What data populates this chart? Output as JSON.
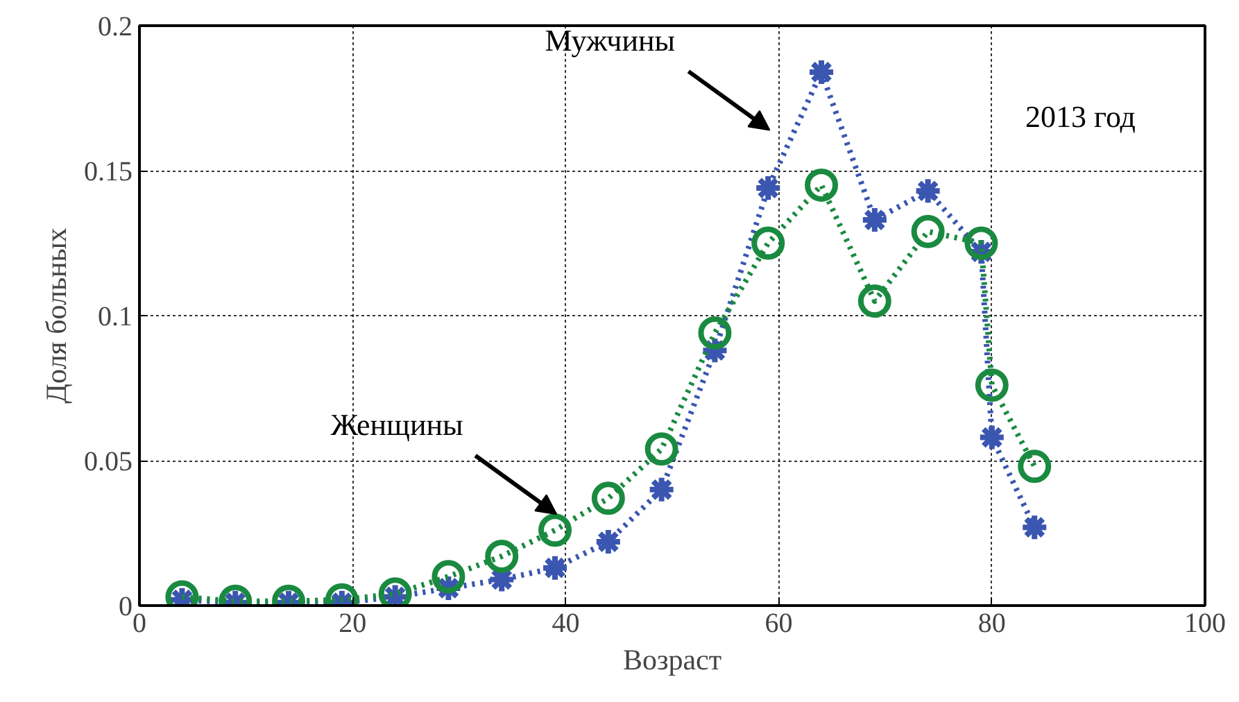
{
  "chart_data": {
    "type": "line",
    "xlabel": "Возраст",
    "ylabel": "Доля больных",
    "x": [
      4,
      9,
      14,
      19,
      24,
      29,
      34,
      39,
      44,
      49,
      54,
      59,
      64,
      69,
      74,
      79,
      80,
      84
    ],
    "series": [
      {
        "name": "Мужчины",
        "color": "#3a56b0",
        "marker": "cross",
        "line_style": "dotted",
        "values": [
          0.002,
          0.001,
          0.001,
          0.001,
          0.003,
          0.006,
          0.009,
          0.013,
          0.022,
          0.04,
          0.088,
          0.144,
          0.184,
          0.133,
          0.143,
          0.122,
          0.058,
          0.027
        ]
      },
      {
        "name": "Женщины",
        "color": "#1a8a40",
        "marker": "circle",
        "line_style": "dotted",
        "values": [
          0.003,
          0.0015,
          0.0015,
          0.002,
          0.004,
          0.01,
          0.017,
          0.026,
          0.037,
          0.054,
          0.094,
          0.125,
          0.145,
          0.105,
          0.129,
          0.125,
          0.076,
          0.048
        ]
      }
    ],
    "annotations": [
      "2013 год"
    ],
    "xlim": [
      0,
      100
    ],
    "ylim": [
      0,
      0.2
    ],
    "xticks": [
      0,
      20,
      40,
      60,
      80,
      100
    ],
    "yticks": [
      0,
      0.05,
      0.1,
      0.15,
      0.2
    ],
    "grid": true
  }
}
